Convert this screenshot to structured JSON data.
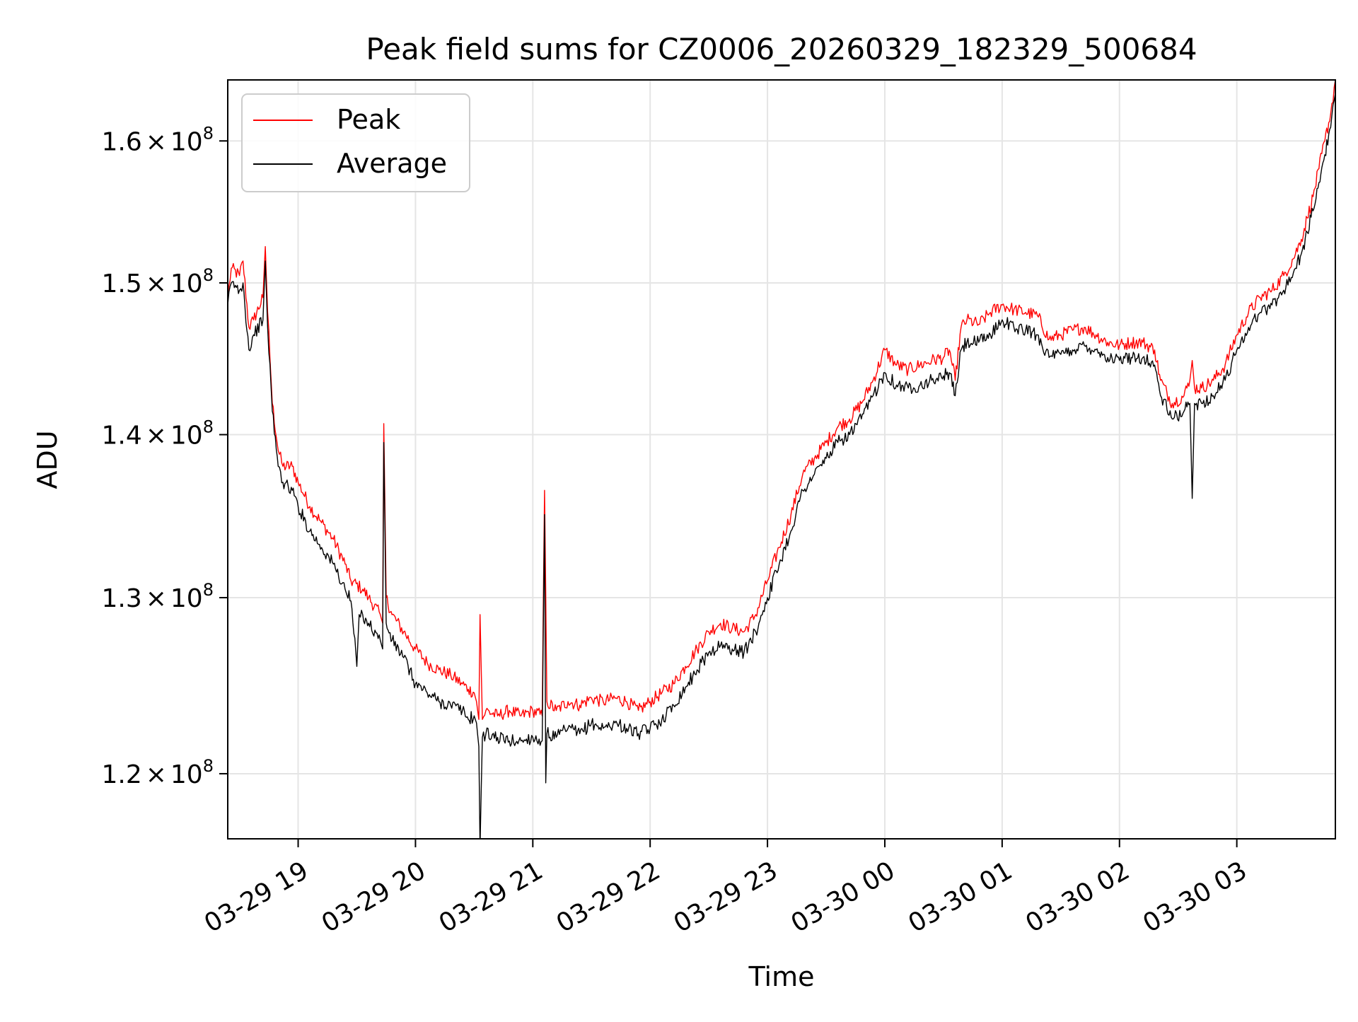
{
  "chart_data": {
    "type": "line",
    "title": "Peak field sums for CZ0006_20260329_182329_500684",
    "xlabel": "Time",
    "ylabel": "ADU",
    "yscale": "log",
    "grid": true,
    "legend_position": "top-left",
    "x_unit": "hours since 03-29 18:00",
    "xlim": [
      0.4,
      9.84
    ],
    "ylim": [
      116500000.0,
      164500000.0
    ],
    "x_ticks": [
      {
        "value": 1,
        "label": "03-29 19"
      },
      {
        "value": 2,
        "label": "03-29 20"
      },
      {
        "value": 3,
        "label": "03-29 21"
      },
      {
        "value": 4,
        "label": "03-29 22"
      },
      {
        "value": 5,
        "label": "03-29 23"
      },
      {
        "value": 6,
        "label": "03-30 00"
      },
      {
        "value": 7,
        "label": "03-30 01"
      },
      {
        "value": 8,
        "label": "03-30 02"
      },
      {
        "value": 9,
        "label": "03-30 03"
      }
    ],
    "y_ticks": [
      {
        "value": 120000000.0,
        "mantissa": "1.2",
        "times": "×",
        "base": "10",
        "exp": "8"
      },
      {
        "value": 130000000.0,
        "mantissa": "1.3",
        "times": "×",
        "base": "10",
        "exp": "8"
      },
      {
        "value": 140000000.0,
        "mantissa": "1.4",
        "times": "×",
        "base": "10",
        "exp": "8"
      },
      {
        "value": 150000000.0,
        "mantissa": "1.5",
        "times": "×",
        "base": "10",
        "exp": "8"
      },
      {
        "value": 160000000.0,
        "mantissa": "1.6",
        "times": "×",
        "base": "10",
        "exp": "8"
      }
    ],
    "series": [
      {
        "name": "Peak",
        "color": "#ff0000",
        "points": [
          [
            0.4,
            149000000.0
          ],
          [
            0.43,
            151000000.0
          ],
          [
            0.5,
            150500000.0
          ],
          [
            0.53,
            151500000.0
          ],
          [
            0.58,
            147000000.0
          ],
          [
            0.62,
            147500000.0
          ],
          [
            0.7,
            149000000.0
          ],
          [
            0.72,
            152500000.0
          ],
          [
            0.74,
            148000000.0
          ],
          [
            0.78,
            142000000.0
          ],
          [
            0.83,
            139000000.0
          ],
          [
            0.87,
            138000000.0
          ],
          [
            0.95,
            138000000.0
          ],
          [
            1.0,
            137000000.0
          ],
          [
            1.1,
            135500000.0
          ],
          [
            1.2,
            134500000.0
          ],
          [
            1.3,
            133500000.0
          ],
          [
            1.4,
            132000000.0
          ],
          [
            1.45,
            131000000.0
          ],
          [
            1.55,
            130500000.0
          ],
          [
            1.6,
            130000000.0
          ],
          [
            1.7,
            129000000.0
          ],
          [
            1.72,
            128500000.0
          ],
          [
            1.73,
            140700000.0
          ],
          [
            1.75,
            130000000.0
          ],
          [
            1.8,
            129000000.0
          ],
          [
            1.9,
            128000000.0
          ],
          [
            2.0,
            127000000.0
          ],
          [
            2.1,
            126200000.0
          ],
          [
            2.2,
            125800000.0
          ],
          [
            2.3,
            125500000.0
          ],
          [
            2.4,
            125000000.0
          ],
          [
            2.45,
            124700000.0
          ],
          [
            2.5,
            124500000.0
          ],
          [
            2.52,
            124000000.0
          ],
          [
            2.54,
            123000000.0
          ],
          [
            2.55,
            129000000.0
          ],
          [
            2.57,
            123000000.0
          ],
          [
            2.6,
            123500000.0
          ],
          [
            2.7,
            123200000.0
          ],
          [
            2.8,
            123500000.0
          ],
          [
            2.9,
            123200000.0
          ],
          [
            3.0,
            123500000.0
          ],
          [
            3.08,
            123200000.0
          ],
          [
            3.1,
            136500000.0
          ],
          [
            3.12,
            124000000.0
          ],
          [
            3.2,
            123500000.0
          ],
          [
            3.3,
            124000000.0
          ],
          [
            3.4,
            123800000.0
          ],
          [
            3.5,
            124200000.0
          ],
          [
            3.6,
            124000000.0
          ],
          [
            3.7,
            124200000.0
          ],
          [
            3.8,
            124000000.0
          ],
          [
            3.9,
            123500000.0
          ],
          [
            4.0,
            124000000.0
          ],
          [
            4.1,
            124500000.0
          ],
          [
            4.2,
            125000000.0
          ],
          [
            4.3,
            126000000.0
          ],
          [
            4.4,
            127000000.0
          ],
          [
            4.5,
            128000000.0
          ],
          [
            4.6,
            128500000.0
          ],
          [
            4.7,
            128200000.0
          ],
          [
            4.8,
            128000000.0
          ],
          [
            4.9,
            129000000.0
          ],
          [
            5.0,
            131000000.0
          ],
          [
            5.1,
            133000000.0
          ],
          [
            5.2,
            135000000.0
          ],
          [
            5.3,
            137500000.0
          ],
          [
            5.4,
            138500000.0
          ],
          [
            5.5,
            139500000.0
          ],
          [
            5.6,
            140500000.0
          ],
          [
            5.7,
            141000000.0
          ],
          [
            5.8,
            142000000.0
          ],
          [
            5.9,
            143500000.0
          ],
          [
            6.0,
            145500000.0
          ],
          [
            6.1,
            144500000.0
          ],
          [
            6.2,
            144200000.0
          ],
          [
            6.3,
            144500000.0
          ],
          [
            6.4,
            144800000.0
          ],
          [
            6.5,
            145000000.0
          ],
          [
            6.55,
            145500000.0
          ],
          [
            6.6,
            143500000.0
          ],
          [
            6.65,
            147000000.0
          ],
          [
            6.7,
            147500000.0
          ],
          [
            6.8,
            147200000.0
          ],
          [
            6.9,
            148000000.0
          ],
          [
            7.0,
            148500000.0
          ],
          [
            7.1,
            148200000.0
          ],
          [
            7.2,
            148000000.0
          ],
          [
            7.3,
            147800000.0
          ],
          [
            7.4,
            146200000.0
          ],
          [
            7.5,
            146500000.0
          ],
          [
            7.6,
            146800000.0
          ],
          [
            7.7,
            147000000.0
          ],
          [
            7.8,
            146500000.0
          ],
          [
            7.9,
            146000000.0
          ],
          [
            8.0,
            145800000.0
          ],
          [
            8.1,
            146000000.0
          ],
          [
            8.2,
            146000000.0
          ],
          [
            8.3,
            145500000.0
          ],
          [
            8.35,
            143500000.0
          ],
          [
            8.45,
            142000000.0
          ],
          [
            8.55,
            142500000.0
          ],
          [
            8.6,
            143500000.0
          ],
          [
            8.62,
            144800000.0
          ],
          [
            8.64,
            143000000.0
          ],
          [
            8.7,
            143000000.0
          ],
          [
            8.8,
            143500000.0
          ],
          [
            8.9,
            144500000.0
          ],
          [
            9.0,
            146500000.0
          ],
          [
            9.1,
            148000000.0
          ],
          [
            9.2,
            149000000.0
          ],
          [
            9.3,
            149500000.0
          ],
          [
            9.4,
            150500000.0
          ],
          [
            9.5,
            152000000.0
          ],
          [
            9.55,
            153000000.0
          ],
          [
            9.6,
            154500000.0
          ],
          [
            9.65,
            156000000.0
          ],
          [
            9.7,
            158000000.0
          ],
          [
            9.75,
            160000000.0
          ],
          [
            9.8,
            162000000.0
          ],
          [
            9.84,
            164500000.0
          ]
        ]
      },
      {
        "name": "Average",
        "color": "#000000",
        "points": [
          [
            0.4,
            148500000.0
          ],
          [
            0.43,
            150000000.0
          ],
          [
            0.5,
            149500000.0
          ],
          [
            0.53,
            150000000.0
          ],
          [
            0.58,
            145500000.0
          ],
          [
            0.62,
            146500000.0
          ],
          [
            0.7,
            147500000.0
          ],
          [
            0.72,
            151500000.0
          ],
          [
            0.74,
            147000000.0
          ],
          [
            0.78,
            141500000.0
          ],
          [
            0.83,
            138000000.0
          ],
          [
            0.87,
            137000000.0
          ],
          [
            0.95,
            136500000.0
          ],
          [
            1.0,
            135500000.0
          ],
          [
            1.1,
            134000000.0
          ],
          [
            1.2,
            133000000.0
          ],
          [
            1.3,
            132000000.0
          ],
          [
            1.4,
            130500000.0
          ],
          [
            1.45,
            129800000.0
          ],
          [
            1.5,
            126000000.0
          ],
          [
            1.52,
            129000000.0
          ],
          [
            1.55,
            129000000.0
          ],
          [
            1.6,
            128500000.0
          ],
          [
            1.7,
            127500000.0
          ],
          [
            1.72,
            127000000.0
          ],
          [
            1.73,
            139500000.0
          ],
          [
            1.75,
            128500000.0
          ],
          [
            1.8,
            127500000.0
          ],
          [
            1.9,
            126500000.0
          ],
          [
            2.0,
            125000000.0
          ],
          [
            2.1,
            124500000.0
          ],
          [
            2.2,
            124000000.0
          ],
          [
            2.3,
            123800000.0
          ],
          [
            2.4,
            123500000.0
          ],
          [
            2.45,
            123000000.0
          ],
          [
            2.5,
            123200000.0
          ],
          [
            2.52,
            122800000.0
          ],
          [
            2.54,
            121500000.0
          ],
          [
            2.55,
            116000000.0
          ],
          [
            2.57,
            122000000.0
          ],
          [
            2.6,
            122200000.0
          ],
          [
            2.7,
            122000000.0
          ],
          [
            2.8,
            121800000.0
          ],
          [
            2.9,
            121800000.0
          ],
          [
            3.0,
            122000000.0
          ],
          [
            3.08,
            121800000.0
          ],
          [
            3.1,
            135000000.0
          ],
          [
            3.11,
            119500000.0
          ],
          [
            3.12,
            122200000.0
          ],
          [
            3.2,
            122000000.0
          ],
          [
            3.3,
            122500000.0
          ],
          [
            3.4,
            122200000.0
          ],
          [
            3.5,
            122800000.0
          ],
          [
            3.6,
            122500000.0
          ],
          [
            3.7,
            122800000.0
          ],
          [
            3.8,
            122500000.0
          ],
          [
            3.9,
            122200000.0
          ],
          [
            4.0,
            122500000.0
          ],
          [
            4.1,
            123000000.0
          ],
          [
            4.2,
            123800000.0
          ],
          [
            4.3,
            124800000.0
          ],
          [
            4.4,
            125800000.0
          ],
          [
            4.5,
            126800000.0
          ],
          [
            4.6,
            127200000.0
          ],
          [
            4.7,
            127000000.0
          ],
          [
            4.8,
            126800000.0
          ],
          [
            4.9,
            128000000.0
          ],
          [
            5.0,
            130000000.0
          ],
          [
            5.1,
            132000000.0
          ],
          [
            5.2,
            134000000.0
          ],
          [
            5.3,
            136500000.0
          ],
          [
            5.4,
            137500000.0
          ],
          [
            5.5,
            138500000.0
          ],
          [
            5.6,
            139500000.0
          ],
          [
            5.7,
            140000000.0
          ],
          [
            5.8,
            141000000.0
          ],
          [
            5.9,
            142500000.0
          ],
          [
            6.0,
            144000000.0
          ],
          [
            6.1,
            143200000.0
          ],
          [
            6.2,
            143000000.0
          ],
          [
            6.3,
            143200000.0
          ],
          [
            6.4,
            143500000.0
          ],
          [
            6.5,
            143800000.0
          ],
          [
            6.55,
            144000000.0
          ],
          [
            6.6,
            142500000.0
          ],
          [
            6.65,
            145500000.0
          ],
          [
            6.7,
            146000000.0
          ],
          [
            6.8,
            146000000.0
          ],
          [
            6.9,
            146500000.0
          ],
          [
            7.0,
            147500000.0
          ],
          [
            7.1,
            147000000.0
          ],
          [
            7.2,
            146800000.0
          ],
          [
            7.3,
            146500000.0
          ],
          [
            7.4,
            145000000.0
          ],
          [
            7.5,
            145200000.0
          ],
          [
            7.6,
            145500000.0
          ],
          [
            7.7,
            145800000.0
          ],
          [
            7.8,
            145500000.0
          ],
          [
            7.9,
            145000000.0
          ],
          [
            8.0,
            144800000.0
          ],
          [
            8.1,
            145000000.0
          ],
          [
            8.2,
            145000000.0
          ],
          [
            8.3,
            144500000.0
          ],
          [
            8.35,
            142500000.0
          ],
          [
            8.45,
            141000000.0
          ],
          [
            8.55,
            141500000.0
          ],
          [
            8.6,
            142000000.0
          ],
          [
            8.62,
            136000000.0
          ],
          [
            8.64,
            142000000.0
          ],
          [
            8.7,
            142000000.0
          ],
          [
            8.8,
            142500000.0
          ],
          [
            8.9,
            143500000.0
          ],
          [
            9.0,
            145500000.0
          ],
          [
            9.1,
            147000000.0
          ],
          [
            9.2,
            148000000.0
          ],
          [
            9.3,
            148500000.0
          ],
          [
            9.4,
            149500000.0
          ],
          [
            9.5,
            151000000.0
          ],
          [
            9.55,
            152000000.0
          ],
          [
            9.6,
            153500000.0
          ],
          [
            9.65,
            155000000.0
          ],
          [
            9.7,
            157000000.0
          ],
          [
            9.75,
            159000000.0
          ],
          [
            9.8,
            161000000.0
          ],
          [
            9.84,
            163500000.0
          ]
        ]
      }
    ]
  }
}
